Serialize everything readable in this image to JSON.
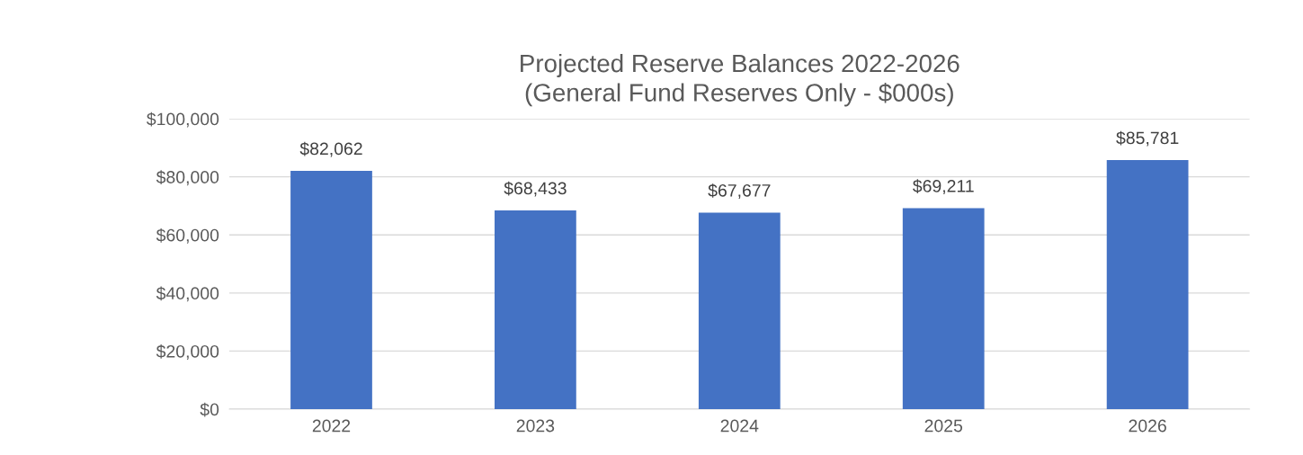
{
  "chart_data": {
    "type": "bar",
    "title": "Projected Reserve Balances 2022-2026\n(General Fund Reserves Only - $000s)",
    "categories": [
      "2022",
      "2023",
      "2024",
      "2025",
      "2026"
    ],
    "values": [
      82062,
      68433,
      67677,
      69211,
      85781
    ],
    "value_labels": [
      "$82,062",
      "$68,433",
      "$67,677",
      "$69,211",
      "$85,781"
    ],
    "color": "#4472c4",
    "ylim": [
      0,
      100000
    ],
    "yticks": [
      {
        "value": 0,
        "label": "$0"
      },
      {
        "value": 20000,
        "label": "$20,000"
      },
      {
        "value": 40000,
        "label": "$40,000"
      },
      {
        "value": 60000,
        "label": "$60,000"
      },
      {
        "value": 80000,
        "label": "$80,000"
      },
      {
        "value": 100000,
        "label": "$100,000"
      }
    ],
    "grid": "y",
    "legend": false
  }
}
